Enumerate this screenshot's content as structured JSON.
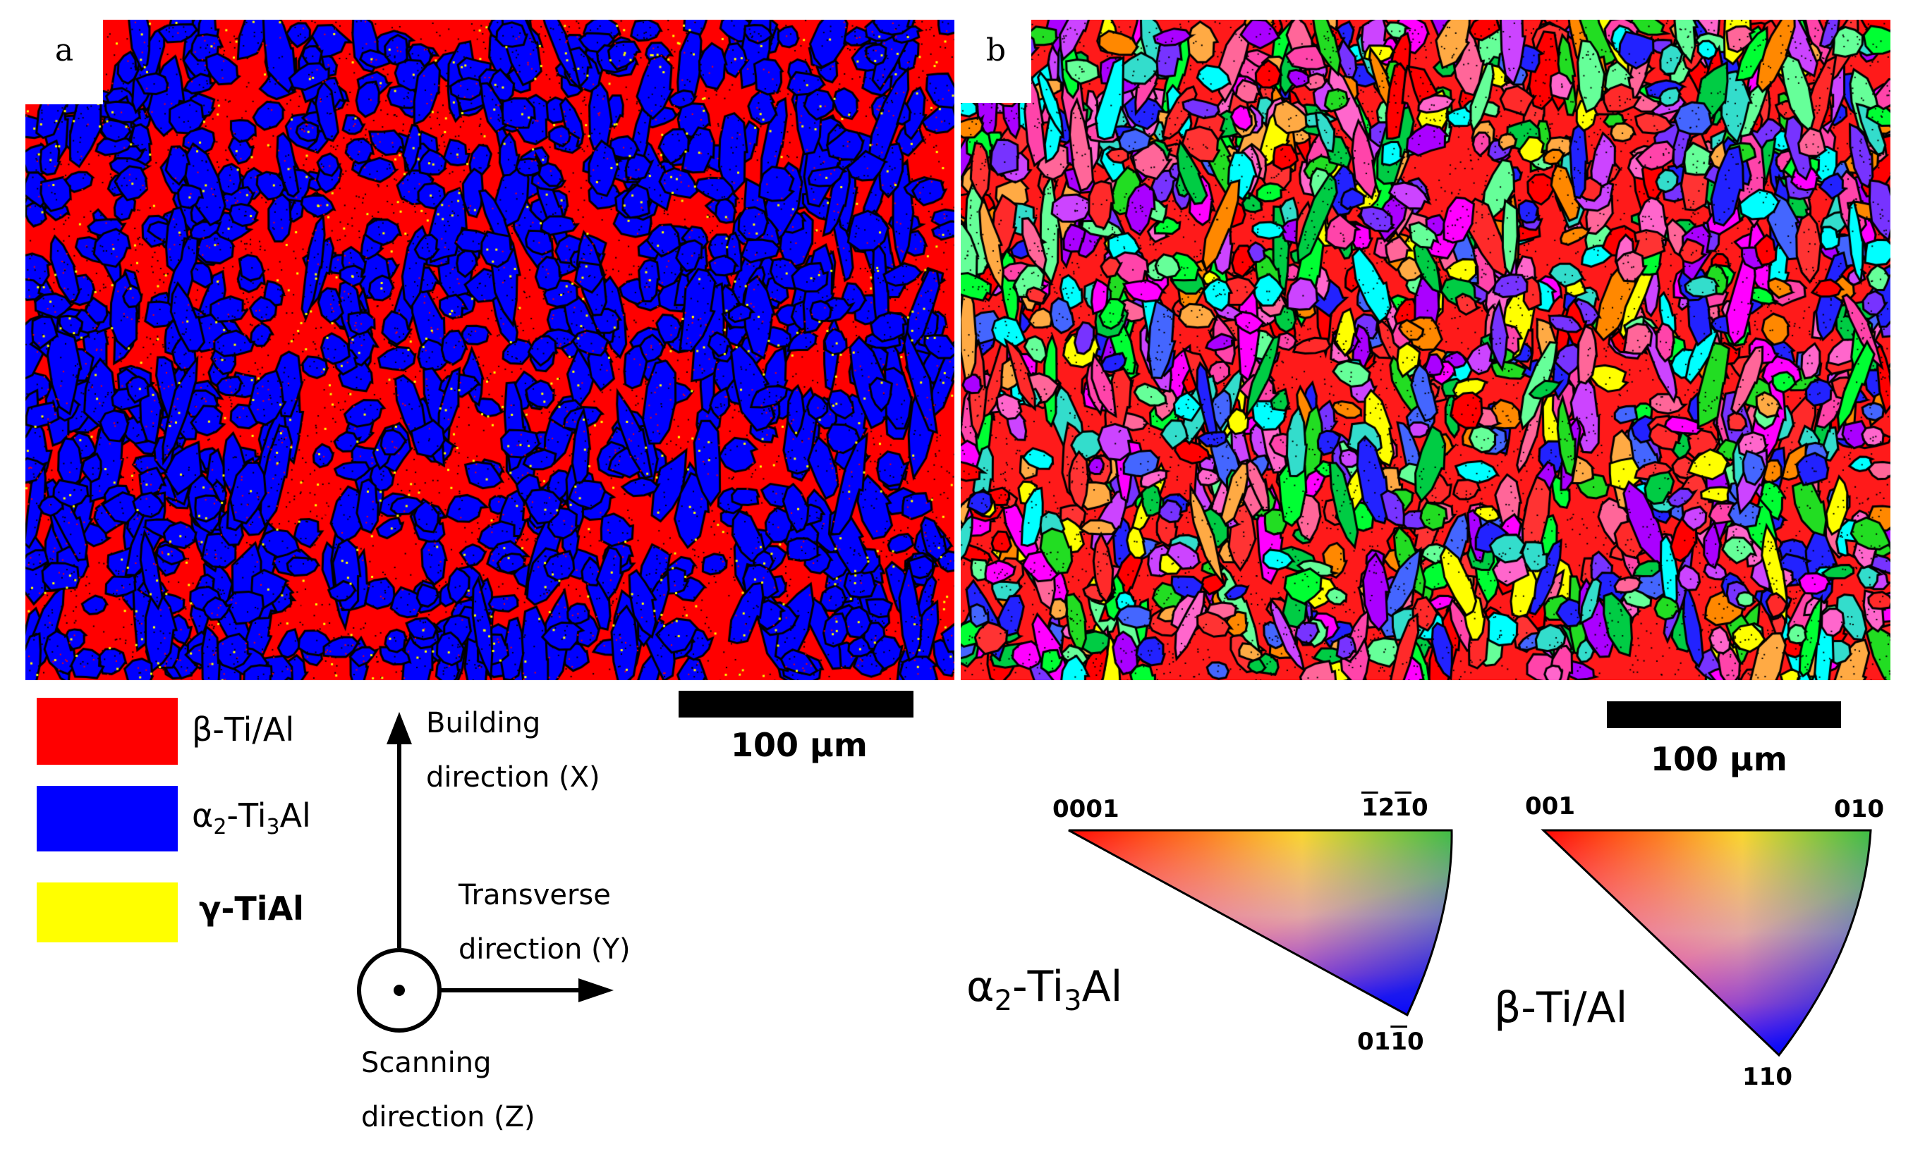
{
  "panels": {
    "a": {
      "label": "a"
    },
    "b": {
      "label": "b"
    }
  },
  "phase_legend": [
    {
      "name": "β-Ti/Al",
      "color": "#ff0000"
    },
    {
      "name_main": "α",
      "name_sub1": "2",
      "name_mid": "-Ti",
      "name_sub2": "3",
      "name_end": "Al",
      "color": "#0000ff"
    },
    {
      "name": "γ-TiAl",
      "color": "#ffff00"
    }
  ],
  "axes": {
    "building_line1": "Building",
    "building_line2": "direction (X)",
    "transverse_line1": "Transverse",
    "transverse_line2": "direction (Y)",
    "scanning_line1": "Scanning",
    "scanning_line2": "direction (Z)"
  },
  "scale_bars": {
    "a": "100 µm",
    "b": "100 µm"
  },
  "ipf": {
    "alpha": {
      "title_main": "α",
      "title_sub1": "2",
      "title_mid": "-Ti",
      "title_sub2": "3",
      "title_end": "Al",
      "corner_0001": "0001",
      "corner_1210_pre": "1",
      "corner_1210_mid": "2",
      "corner_1210_bar": "1",
      "corner_1210_end": "0",
      "corner_0110_pre": "01",
      "corner_0110_bar": "1",
      "corner_0110_end": "0"
    },
    "beta": {
      "title": "β-Ti/Al",
      "corner_001": "001",
      "corner_010": "010",
      "corner_110": "110"
    }
  },
  "colors": {
    "beta": "#ff0000",
    "alpha2": "#0000ff",
    "gamma": "#ffff00",
    "grain_boundary": "#000000"
  }
}
